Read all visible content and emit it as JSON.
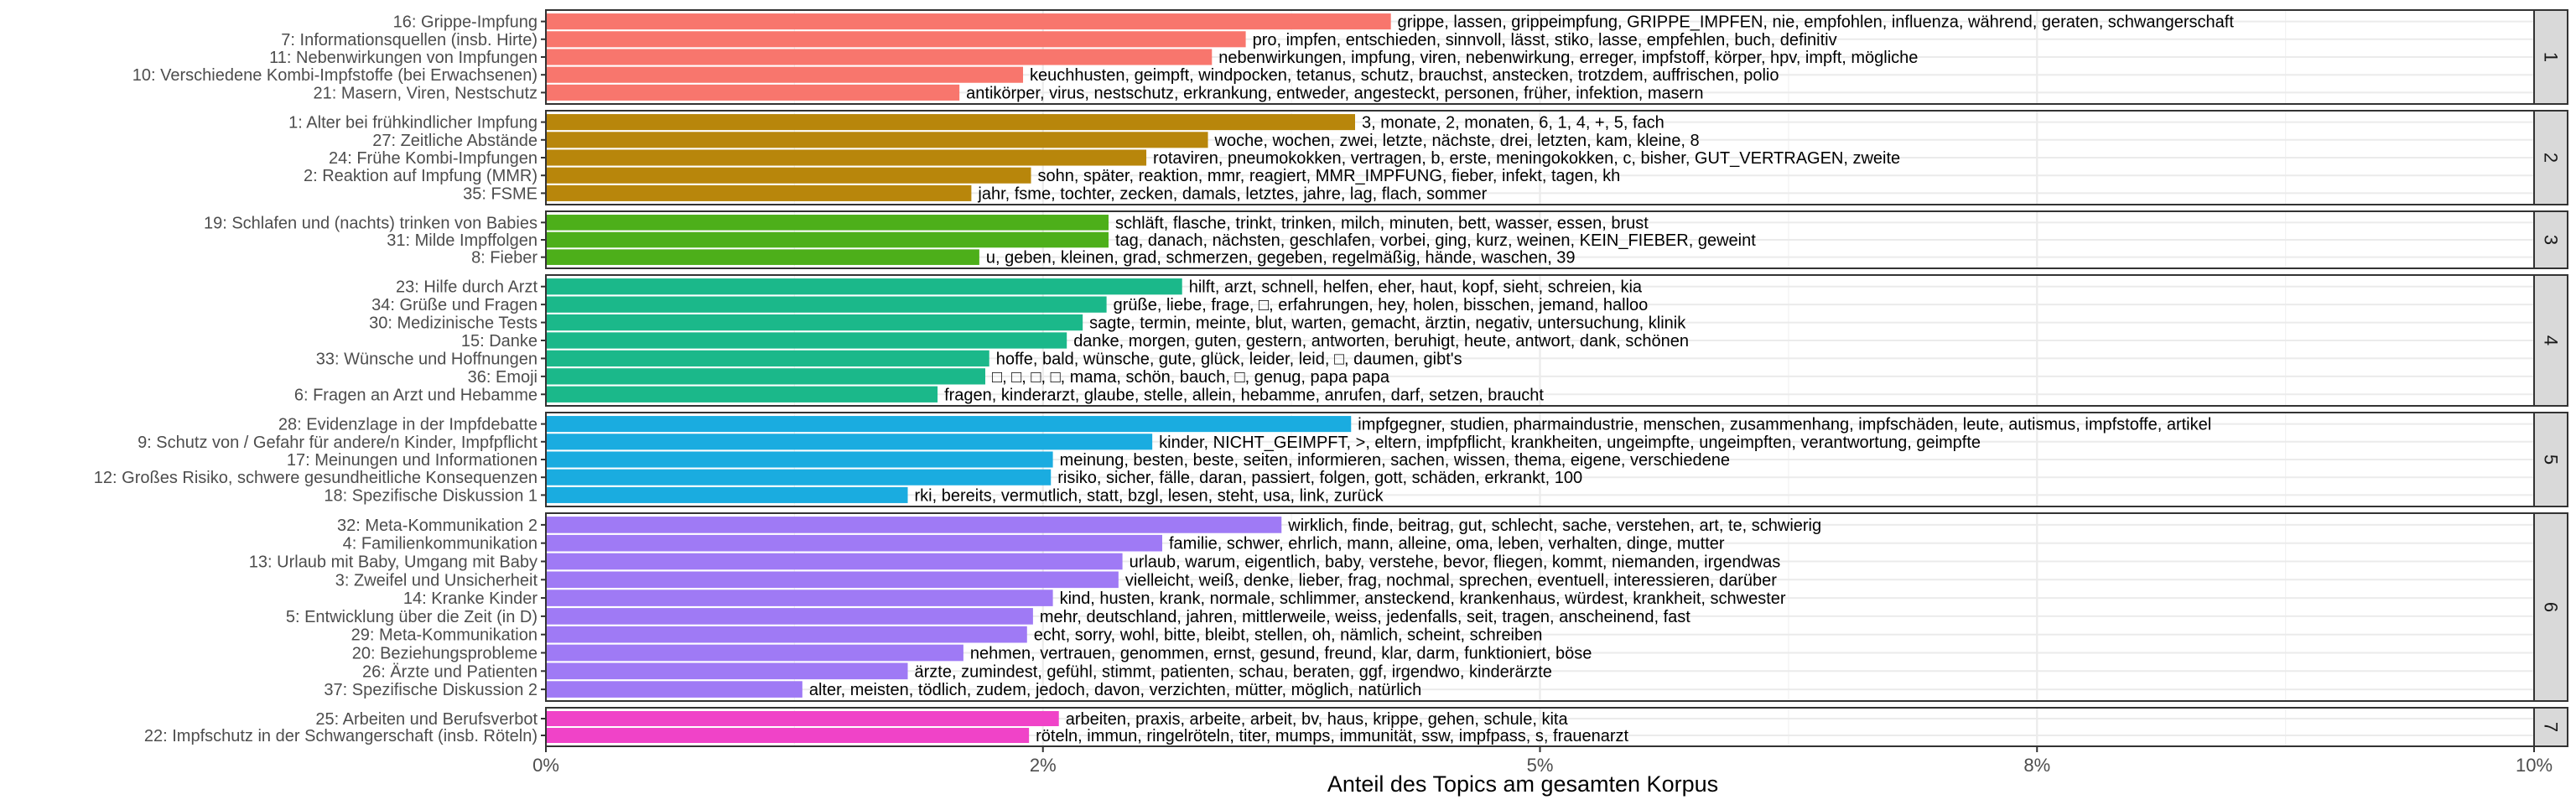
{
  "chart_data": {
    "type": "bar",
    "orientation": "horizontal",
    "facets": "rows",
    "xlabel": "Anteil des Topics am gesamten Korpus",
    "xlim": [
      0,
      0.1
    ],
    "xticks": [
      0,
      0.025,
      0.05,
      0.075,
      0.1
    ],
    "xtick_labels": [
      "0%",
      "2%",
      "5%",
      "8%",
      "10%"
    ],
    "grid": true,
    "panels": [
      {
        "label": "1",
        "color": "#F8766D",
        "bars": [
          {
            "topic": "16: Grippe-Impfung",
            "value": 0.0425,
            "words": "grippe, lassen, grippeimpfung, GRIPPE_IMPFEN, nie, empfohlen, influenza, während, geraten, schwangerschaft"
          },
          {
            "topic": "7: Informationsquellen (insb. Hirte)",
            "value": 0.0352,
            "words": "pro, impfen, entschieden, sinnvoll, lässt, stiko, lasse, empfehlen, buch, definitiv"
          },
          {
            "topic": "11: Nebenwirkungen von Impfungen",
            "value": 0.0335,
            "words": "nebenwirkungen, impfung, viren, nebenwirkung, erreger, impfstoff, körper, hpv, impft, mögliche"
          },
          {
            "topic": "10: Verschiedene Kombi-Impfstoffe (bei Erwachsenen)",
            "value": 0.024,
            "words": "keuchhusten, geimpft, windpocken, tetanus, schutz, brauchst, anstecken, trotzdem, auffrischen, polio"
          },
          {
            "topic": "21: Masern, Viren, Nestschutz",
            "value": 0.0208,
            "words": "antikörper, virus, nestschutz, erkrankung, entweder, angesteckt, personen, früher, infektion, masern"
          }
        ]
      },
      {
        "label": "2",
        "color": "#B8860B",
        "bars": [
          {
            "topic": "1: Alter bei frühkindlicher Impfung",
            "value": 0.0407,
            "words": "3, monate, 2, monaten, 6, 1, 4, +, 5, fach"
          },
          {
            "topic": "27: Zeitliche Abstände",
            "value": 0.0333,
            "words": "woche, wochen, zwei, letzte, nächste, drei, letzten, kam, kleine, 8"
          },
          {
            "topic": "24: Frühe Kombi-Impfungen",
            "value": 0.0302,
            "words": "rotaviren, pneumokokken, vertragen, b, erste, meningokokken, c, bisher, GUT_VERTRAGEN, zweite"
          },
          {
            "topic": "2: Reaktion auf Impfung (MMR)",
            "value": 0.0244,
            "words": "sohn, später, reaktion, mmr, reagiert, MMR_IMPFUNG, fieber, infekt, tagen, kh"
          },
          {
            "topic": "35: FSME",
            "value": 0.0214,
            "words": "jahr, fsme, tochter, zecken, damals, letztes, jahre, lag, flach, sommer"
          }
        ]
      },
      {
        "label": "3",
        "color": "#4DAF1A",
        "bars": [
          {
            "topic": "19: Schlafen und (nachts) trinken von Babies",
            "value": 0.0283,
            "words": "schläft, flasche, trinkt, trinken, milch, minuten, bett, wasser, essen, brust"
          },
          {
            "topic": "31: Milde Impffolgen",
            "value": 0.0283,
            "words": "tag, danach, nächsten, geschlafen, vorbei, ging, kurz, weinen, KEIN_FIEBER, geweint"
          },
          {
            "topic": "8: Fieber",
            "value": 0.0218,
            "words": "u, geben, kleinen, grad, schmerzen, gegeben, regelmäßig, hände, waschen, 39"
          }
        ]
      },
      {
        "label": "4",
        "color": "#1BB88A",
        "bars": [
          {
            "topic": "23: Hilfe durch Arzt",
            "value": 0.032,
            "words": "hilft, arzt, schnell, helfen, eher, haut, kopf, sieht, schreien, kia"
          },
          {
            "topic": "34: Grüße und Fragen",
            "value": 0.0282,
            "words": "grüße, liebe, frage, □, erfahrungen, hey, holen, bisschen, jemand, halloo"
          },
          {
            "topic": "30: Medizinische Tests",
            "value": 0.027,
            "words": "sagte, termin, meinte, blut, warten, gemacht, ärztin, negativ, untersuchung, klinik"
          },
          {
            "topic": "15: Danke",
            "value": 0.0262,
            "words": "danke, morgen, guten, gestern, antworten, beruhigt, heute, antwort, dank, schönen"
          },
          {
            "topic": "33: Wünsche und Hoffnungen",
            "value": 0.0223,
            "words": "hoffe, bald, wünsche, gute, glück, leider, leid, □, daumen, gibt's"
          },
          {
            "topic": "36: Emoji",
            "value": 0.0221,
            "words": "□, □, □, □, mama, schön, bauch, □, genug, papa papa"
          },
          {
            "topic": "6: Fragen an Arzt und Hebamme",
            "value": 0.0197,
            "words": "fragen, kinderarzt, glaube, stelle, allein, hebamme, anrufen, darf, setzen, braucht"
          }
        ]
      },
      {
        "label": "5",
        "color": "#1AACE0",
        "bars": [
          {
            "topic": "28: Evidenzlage in der Impfdebatte",
            "value": 0.0405,
            "words": "impfgegner, studien, pharmaindustrie, menschen, zusammenhang, impfschäden, leute, autismus, impfstoffe, artikel"
          },
          {
            "topic": "9: Schutz von / Gefahr für andere/n Kinder, Impfpflicht",
            "value": 0.0305,
            "words": "kinder, NICHT_GEIMPFT, >, eltern, impfpflicht, krankheiten, ungeimpfte, ungeimpften, verantwortung, geimpfte"
          },
          {
            "topic": "17: Meinungen und Informationen",
            "value": 0.0255,
            "words": "meinung, besten, beste, seiten, informieren, sachen, wissen, thema, eigene, verschiedene"
          },
          {
            "topic": "12: Großes Risiko, schwere gesundheitliche Konsequenzen",
            "value": 0.0254,
            "words": "risiko, sicher, fälle, daran, passiert, folgen, gott, schäden, erkrankt, 100"
          },
          {
            "topic": "18: Spezifische Diskussion 1",
            "value": 0.0182,
            "words": "rki, bereits, vermutlich, statt, bzgl, lesen, steht, usa, link, zurück"
          }
        ]
      },
      {
        "label": "6",
        "color": "#9F7AF5",
        "bars": [
          {
            "topic": "32: Meta-Kommunikation 2",
            "value": 0.037,
            "words": "wirklich, finde, beitrag, gut, schlecht, sache, verstehen, art, te, schwierig"
          },
          {
            "topic": "4: Familienkommunikation",
            "value": 0.031,
            "words": "familie, schwer, ehrlich, mann, alleine, oma, leben, verhalten, dinge, mutter"
          },
          {
            "topic": "13: Urlaub mit Baby, Umgang mit Baby",
            "value": 0.029,
            "words": "urlaub, warum, eigentlich, baby, verstehe, bevor, fliegen, kommt, niemanden, irgendwas"
          },
          {
            "topic": "3: Zweifel und Unsicherheit",
            "value": 0.0288,
            "words": "vielleicht, weiß, denke, lieber, frag, nochmal, sprechen, eventuell, interessieren, darüber"
          },
          {
            "topic": "14: Kranke Kinder",
            "value": 0.0255,
            "words": "kind, husten, krank, normale, schlimmer, ansteckend, krankenhaus, würdest, krankheit, schwester"
          },
          {
            "topic": "5: Entwicklung über die Zeit (in D)",
            "value": 0.0245,
            "words": "mehr, deutschland, jahren, mittlerweile, weiss, jedenfalls, seit, tragen, anscheinend, fast"
          },
          {
            "topic": "29: Meta-Kommunikation",
            "value": 0.0242,
            "words": "echt, sorry, wohl, bitte, bleibt, stellen, oh, nämlich, scheint, schreiben"
          },
          {
            "topic": "20: Beziehungsprobleme",
            "value": 0.021,
            "words": "nehmen, vertrauen, genommen, ernst, gesund, freund, klar, darm, funktioniert, böse"
          },
          {
            "topic": "26: Ärzte und Patienten",
            "value": 0.0182,
            "words": "ärzte, zumindest, gefühl, stimmt, patienten, schau, beraten, ggf, irgendwo, kinderärzte"
          },
          {
            "topic": "37: Spezifische Diskussion 2",
            "value": 0.0129,
            "words": "alter, meisten, tödlich, zudem, jedoch, davon, verzichten, mütter, möglich, natürlich"
          }
        ]
      },
      {
        "label": "7",
        "color": "#F043C8",
        "bars": [
          {
            "topic": "25: Arbeiten und Berufsverbot",
            "value": 0.0258,
            "words": "arbeiten, praxis, arbeite, arbeit, bv, haus, krippe, gehen, schule, kita"
          },
          {
            "topic": "22: Impfschutz in der Schwangerschaft (insb. Röteln)",
            "value": 0.0243,
            "words": "röteln, immun, ringelröteln, titer, mumps, immunität, ssw, impfpass, s, frauenarzt"
          }
        ]
      }
    ]
  }
}
